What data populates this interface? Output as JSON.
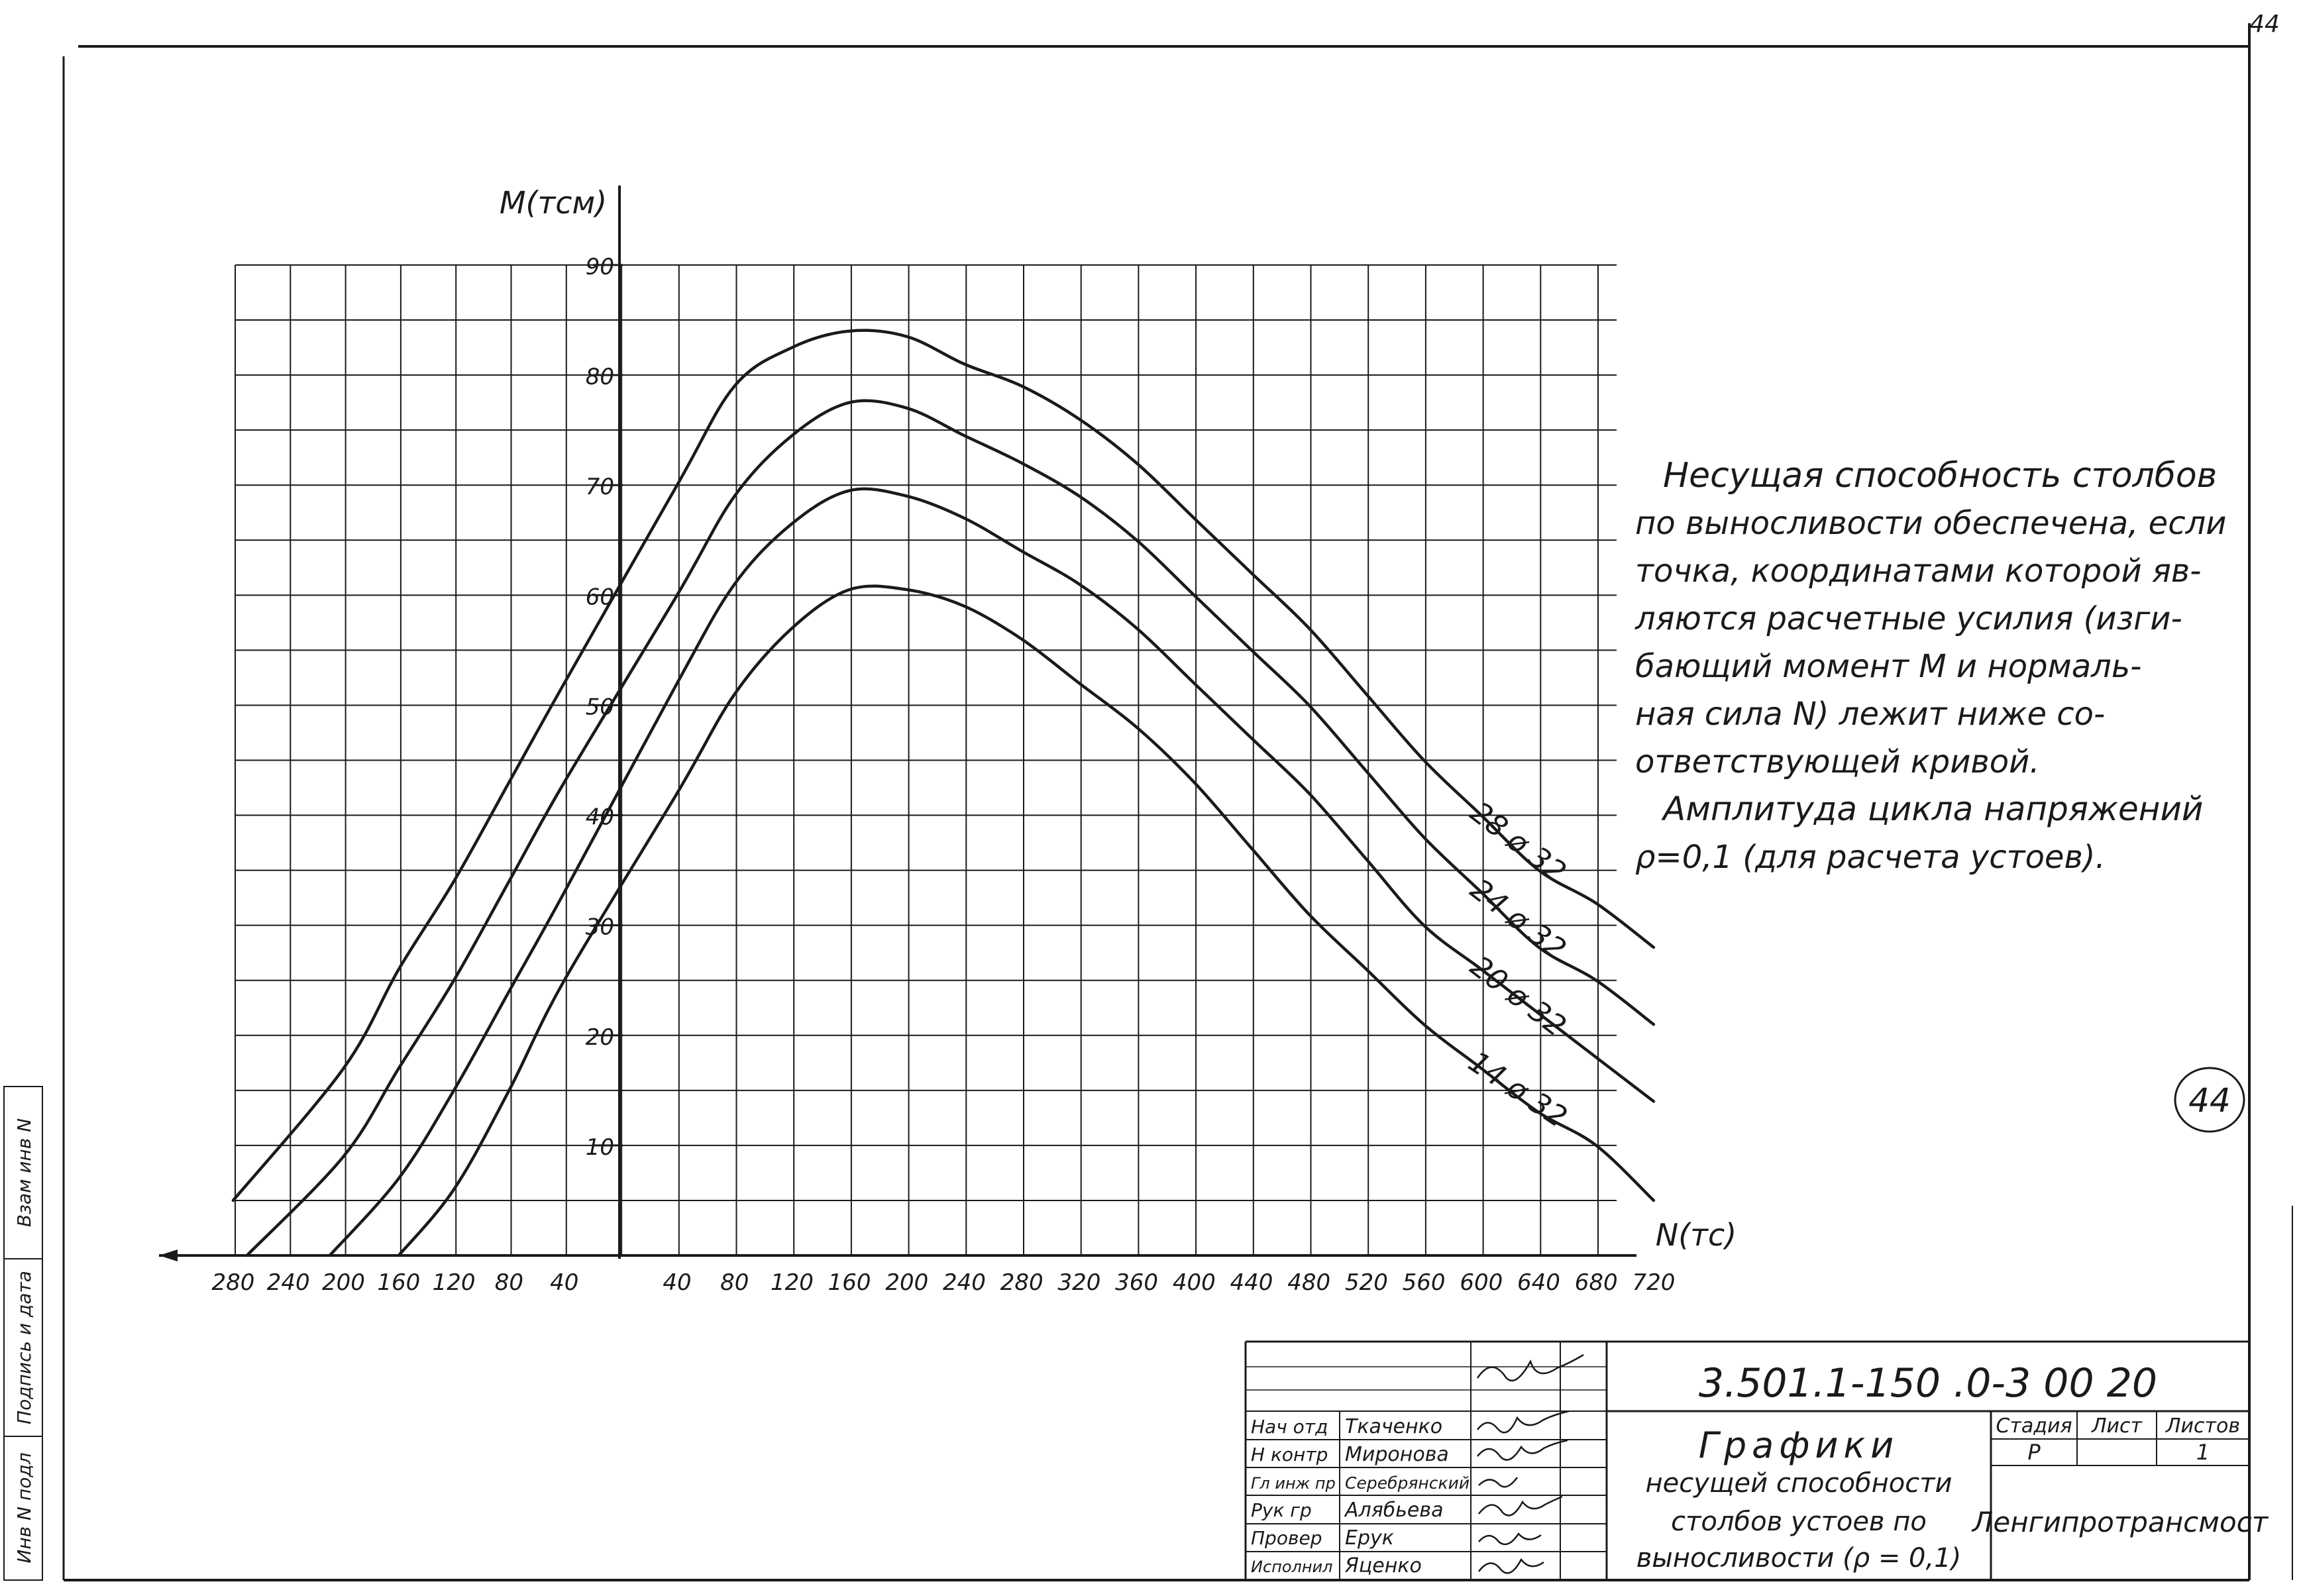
{
  "sheet": {
    "page_number": "44",
    "stamp_number": "44",
    "side_labels": [
      "Инв N подл",
      "Подпись и дата",
      "Взам инв N"
    ]
  },
  "chart_data": {
    "type": "line",
    "title": "",
    "ylabel": "M(тсм)",
    "xlabel": "N(тс)",
    "y_ticks": [
      "10",
      "20",
      "30",
      "40",
      "50",
      "60",
      "70",
      "80",
      "90"
    ],
    "x_ticks_left": [
      "280",
      "240",
      "200",
      "160",
      "120",
      "80",
      "40"
    ],
    "x_ticks_right": [
      "40",
      "80",
      "120",
      "160",
      "200",
      "240",
      "280",
      "320",
      "360",
      "400",
      "440",
      "480",
      "520",
      "560",
      "600",
      "640",
      "680",
      "720"
    ],
    "ylim": [
      0,
      90
    ],
    "grid": true,
    "series": [
      {
        "name": "28 ø 32",
        "points": [
          [
            -280,
            5
          ],
          [
            -200,
            17
          ],
          [
            -160,
            26
          ],
          [
            -120,
            34
          ],
          [
            -80,
            43
          ],
          [
            -40,
            52
          ],
          [
            40,
            70
          ],
          [
            80,
            79
          ],
          [
            120,
            82.5
          ],
          [
            160,
            84
          ],
          [
            200,
            83.5
          ],
          [
            240,
            81
          ],
          [
            280,
            79
          ],
          [
            320,
            76
          ],
          [
            360,
            72
          ],
          [
            400,
            67
          ],
          [
            440,
            62
          ],
          [
            480,
            57
          ],
          [
            520,
            51
          ],
          [
            560,
            45
          ],
          [
            600,
            40
          ],
          [
            640,
            35
          ],
          [
            680,
            32
          ],
          [
            720,
            28
          ]
        ]
      },
      {
        "name": "24 ø 32",
        "points": [
          [
            -270,
            0
          ],
          [
            -200,
            9
          ],
          [
            -160,
            17
          ],
          [
            -120,
            25
          ],
          [
            -80,
            34
          ],
          [
            -40,
            43
          ],
          [
            40,
            60
          ],
          [
            80,
            69
          ],
          [
            120,
            74.5
          ],
          [
            160,
            77.5
          ],
          [
            200,
            77
          ],
          [
            240,
            74.5
          ],
          [
            280,
            72
          ],
          [
            320,
            69
          ],
          [
            360,
            65
          ],
          [
            400,
            60
          ],
          [
            440,
            55
          ],
          [
            480,
            50
          ],
          [
            520,
            44
          ],
          [
            560,
            38
          ],
          [
            600,
            33
          ],
          [
            640,
            28
          ],
          [
            680,
            25
          ],
          [
            720,
            21
          ]
        ]
      },
      {
        "name": "20 ø 32",
        "points": [
          [
            -210,
            0
          ],
          [
            -160,
            7
          ],
          [
            -120,
            15
          ],
          [
            -80,
            24
          ],
          [
            -40,
            33
          ],
          [
            40,
            52
          ],
          [
            80,
            61
          ],
          [
            120,
            66.5
          ],
          [
            160,
            69.5
          ],
          [
            200,
            69
          ],
          [
            240,
            67
          ],
          [
            280,
            64
          ],
          [
            320,
            61
          ],
          [
            360,
            57
          ],
          [
            400,
            52
          ],
          [
            440,
            47
          ],
          [
            480,
            42
          ],
          [
            520,
            36
          ],
          [
            560,
            30
          ],
          [
            600,
            26
          ],
          [
            640,
            22
          ],
          [
            680,
            18
          ],
          [
            720,
            14
          ]
        ]
      },
      {
        "name": "14 ø 32",
        "points": [
          [
            -160,
            0
          ],
          [
            -120,
            6
          ],
          [
            -80,
            15
          ],
          [
            -40,
            25
          ],
          [
            40,
            42
          ],
          [
            80,
            51
          ],
          [
            120,
            57
          ],
          [
            160,
            60.5
          ],
          [
            200,
            60.5
          ],
          [
            240,
            59
          ],
          [
            280,
            56
          ],
          [
            320,
            52
          ],
          [
            360,
            48
          ],
          [
            400,
            43
          ],
          [
            440,
            37
          ],
          [
            480,
            31
          ],
          [
            520,
            26
          ],
          [
            560,
            21
          ],
          [
            600,
            17
          ],
          [
            640,
            13
          ],
          [
            680,
            10
          ],
          [
            720,
            5
          ]
        ]
      }
    ],
    "annotations": [
      "Несущая способность столбов",
      "по выносливости обеспечена, если",
      "точка, координатами которой яв-",
      "ляются расчетные усилия (изги-",
      "бающий момент М и нормаль-",
      "ная сила N) лежит ниже со-",
      "ответствующей кривой.",
      "Амплитуда цикла напряжений",
      "ρ=0,1 (для расчета устоев)."
    ]
  },
  "title_block": {
    "doc_code": "3.501.1-150 .0-3 00 20",
    "title_lines": [
      "Графики",
      "несущей способности",
      "столбов устоев по",
      "выносливости (ρ = 0,1)"
    ],
    "stage_label": "Стадия",
    "sheet_label": "Лист",
    "sheets_label": "Листов",
    "stage_value": "Р",
    "sheets_value": "1",
    "organization": "Ленгипротрансмост",
    "roles": [
      {
        "role": "Нач отд",
        "name": "Ткаченко"
      },
      {
        "role": "Н контр",
        "name": "Миронова"
      },
      {
        "role": "Гл инж пр",
        "name": "Серебрянский"
      },
      {
        "role": "Рук гр",
        "name": "Алябьева"
      },
      {
        "role": "Провер",
        "name": "Ерук"
      },
      {
        "role": "Исполнил",
        "name": "Яценко"
      }
    ]
  }
}
